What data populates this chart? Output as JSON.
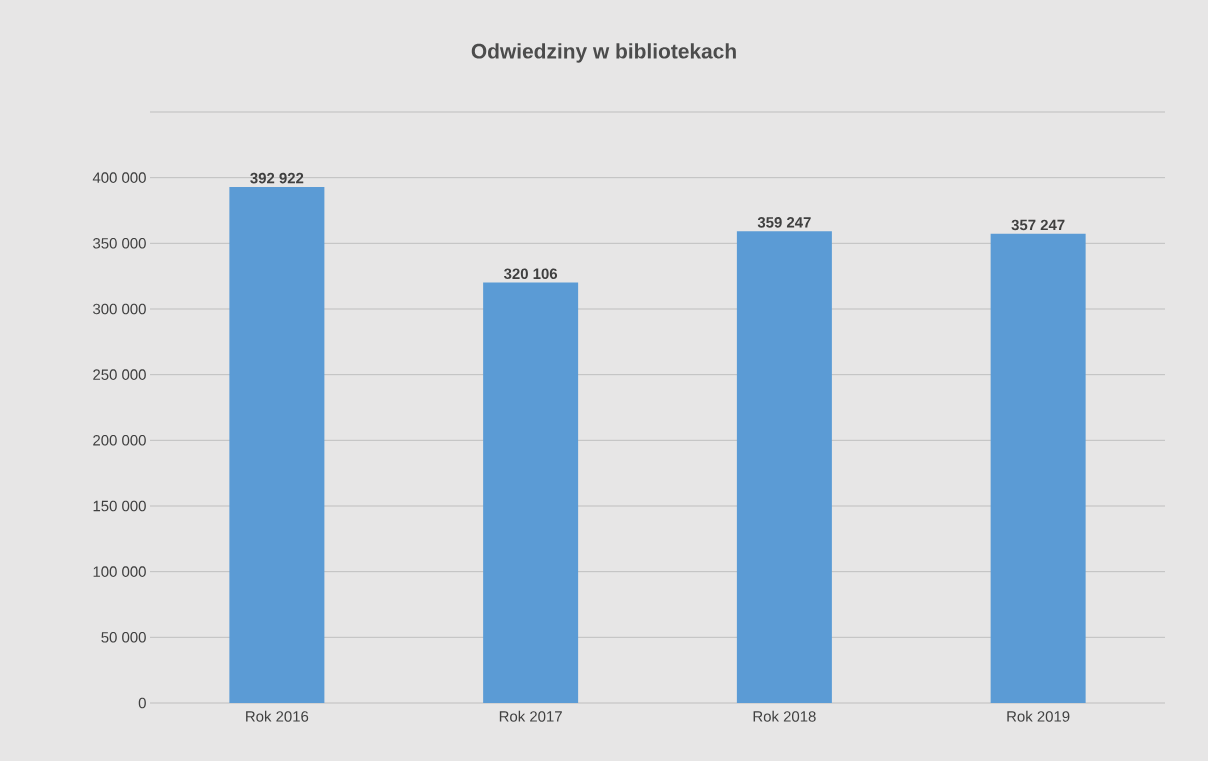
{
  "chart_data": {
    "type": "bar",
    "title": "Odwiedziny w bibliotekach",
    "categories": [
      "Rok 2016",
      "Rok 2017",
      "Rok 2018",
      "Rok 2019"
    ],
    "values": [
      392922,
      320106,
      359247,
      357247
    ],
    "value_labels": [
      "392 922",
      "320 106",
      "359 247",
      "357 247"
    ],
    "color": "#5b9bd5",
    "ylim": [
      0,
      450000
    ],
    "yticks": [
      {
        "value": 0,
        "label": "0"
      },
      {
        "value": 50000,
        "label": "50 000"
      },
      {
        "value": 100000,
        "label": "100 000"
      },
      {
        "value": 150000,
        "label": "150 000"
      },
      {
        "value": 200000,
        "label": "200 000"
      },
      {
        "value": 250000,
        "label": "250 000"
      },
      {
        "value": 300000,
        "label": "300 000"
      },
      {
        "value": 350000,
        "label": "350 000"
      },
      {
        "value": 400000,
        "label": "400 000"
      },
      {
        "value": 450000,
        "label": null
      }
    ],
    "grid": "y"
  }
}
